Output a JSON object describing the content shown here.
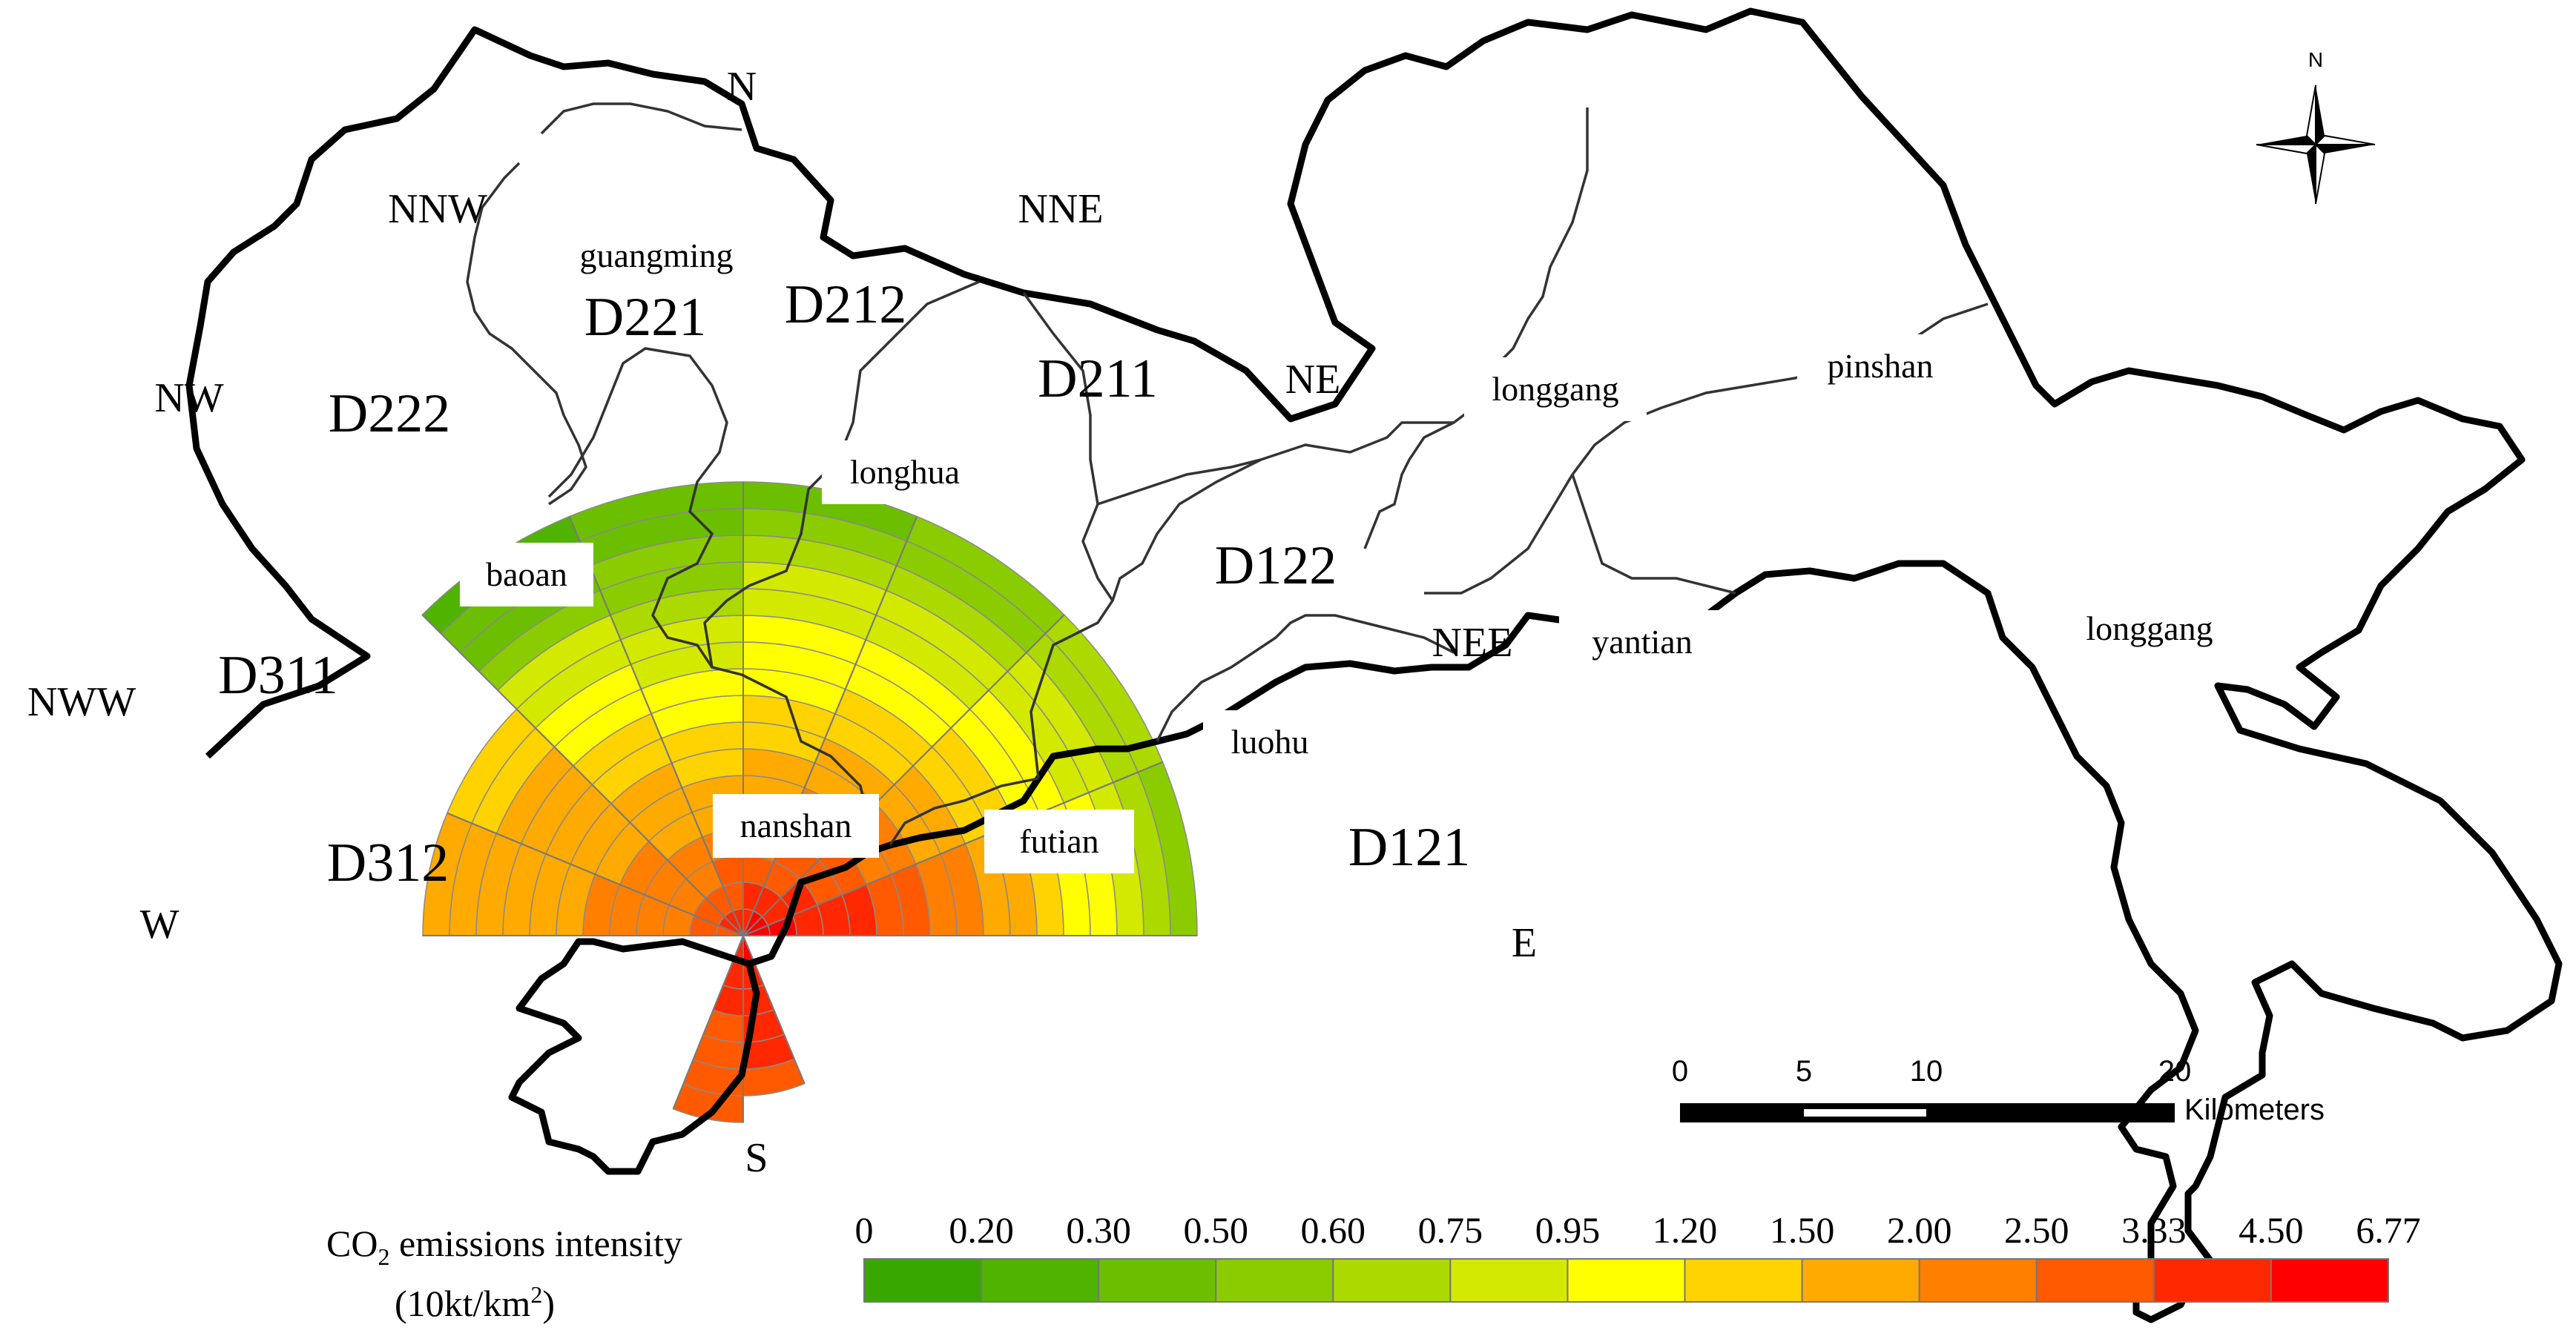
{
  "map": {
    "directions": [
      "N",
      "NNW",
      "NNE",
      "NW",
      "NE",
      "NWW",
      "NEE",
      "W",
      "E",
      "S"
    ],
    "district_labels": [
      "guangming",
      "longhua",
      "baoan",
      "nanshan",
      "futian",
      "luohu",
      "longgang",
      "pinshan",
      "yantian",
      "longgang"
    ],
    "sector_codes": [
      "D221",
      "D212",
      "D222",
      "D211",
      "D122",
      "D311",
      "D312",
      "D121"
    ],
    "north_arrow": {
      "label": "N",
      "icon": "compass-rose-icon"
    },
    "scale_bar": {
      "ticks": [
        "0",
        "5",
        "10",
        "20"
      ],
      "unit": "Kilometers"
    },
    "legend": {
      "title_prefix": "CO",
      "title_subscript": "2",
      "title_suffix": " emissions intensity",
      "unit_prefix": "(10kt/km",
      "unit_superscript": "2",
      "unit_suffix": ")",
      "breaks": [
        "0",
        "0.20",
        "0.30",
        "0.50",
        "0.60",
        "0.75",
        "0.95",
        "1.20",
        "1.50",
        "2.00",
        "2.50",
        "3.33",
        "4.50",
        "6.77"
      ],
      "colors": [
        "#38a800",
        "#4fb300",
        "#6bbf00",
        "#8acc00",
        "#acd900",
        "#d3ea00",
        "#ffff00",
        "#ffd300",
        "#ffaa00",
        "#ff8000",
        "#ff5a00",
        "#ff2800",
        "#ff0000"
      ]
    }
  }
}
